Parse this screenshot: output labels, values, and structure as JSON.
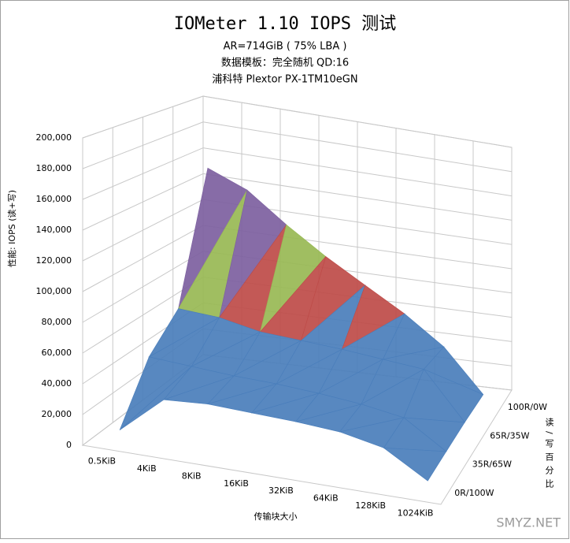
{
  "chart_data": {
    "type": "surface3d",
    "title": "IOMeter 1.10 IOPS 测试",
    "subtitles": [
      "AR=714GiB ( 75% LBA )",
      "数据模板：完全随机 QD:16",
      "浦科特 Plextor PX-1TM10eGN"
    ],
    "y_label": "性能: IOPS (读+写)",
    "x_label": "传输块大小",
    "z_label": "读/写百分比",
    "categories": [
      "0.5KiB",
      "4KiB",
      "8KiB",
      "16KiB",
      "32KiB",
      "64KiB",
      "128KiB",
      "1024KiB"
    ],
    "series": [
      {
        "name": "0R/100W",
        "values": [
          5000,
          30000,
          32000,
          31000,
          30000,
          28000,
          22000,
          4000
        ]
      },
      {
        "name": "35R/65W",
        "values": [
          40000,
          38000,
          36000,
          35000,
          33000,
          30000,
          25000,
          5000
        ]
      },
      {
        "name": "65R/35W",
        "values": [
          60000,
          58000,
          52000,
          50000,
          48000,
          45000,
          42000,
          6000
        ]
      },
      {
        "name": "100R/0W",
        "values": [
          152000,
          140000,
          118000,
          98000,
          80000,
          62000,
          40000,
          6000
        ]
      }
    ],
    "ylim": [
      0,
      200000
    ],
    "yticks": [
      0,
      {
        "value": 20000,
        "label": "20,000"
      },
      {
        "value": 40000,
        "label": "40,000"
      },
      {
        "value": 60000,
        "label": "60,000"
      },
      {
        "value": 80000,
        "label": "80,000"
      },
      {
        "value": 100000,
        "label": "100,000"
      },
      {
        "value": 120000,
        "label": "120,000"
      },
      {
        "value": 140000,
        "label": "140,000"
      },
      {
        "value": 160000,
        "label": "160,000"
      },
      {
        "value": 180000,
        "label": "180,000"
      },
      {
        "value": 200000,
        "label": "200,000"
      }
    ],
    "band_colors": [
      "#4a7ebb",
      "#4a7ebb",
      "#4a7ebb",
      "#be4b48",
      "#98b954",
      "#7d60a0",
      "#46aac5",
      "#f69240"
    ],
    "grid": true,
    "watermark": "SMYZ.NET"
  }
}
